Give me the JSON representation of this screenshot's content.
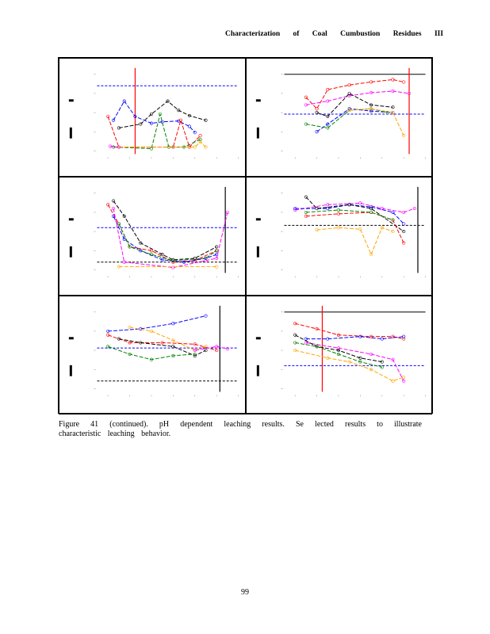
{
  "header": {
    "running_title": "Characterization of Coal Cumbustion Residues III"
  },
  "figure": {
    "caption": "Figure 41 (continued). pH dependent leaching results. Se lected results to illustrate characteristic leaching behavior.",
    "colors": {
      "blue": "#0000ff",
      "red": "#ff0000",
      "black": "#000000",
      "green": "#008000",
      "orange": "#ffa500",
      "magenta": "#ff00ff"
    }
  },
  "chart_data": [
    {
      "type": "line",
      "xlim": [
        1,
        14
      ],
      "ylim": [
        0,
        10
      ],
      "hlines": [
        {
          "y": 8.5,
          "color": "blue"
        }
      ],
      "vlines": [
        {
          "x": 4.5,
          "color": "red"
        }
      ],
      "series": [
        {
          "color": "black",
          "points": [
            [
              3,
              3
            ],
            [
              5,
              3.5
            ],
            [
              6,
              4.8
            ],
            [
              7.5,
              6.5
            ],
            [
              8.5,
              5.3
            ],
            [
              9.5,
              4.6
            ],
            [
              11,
              4
            ]
          ]
        },
        {
          "color": "blue",
          "points": [
            [
              2.5,
              4
            ],
            [
              3.5,
              6.5
            ],
            [
              4.5,
              4.5
            ],
            [
              6,
              3.6
            ],
            [
              7,
              3.8
            ],
            [
              8.5,
              3.9
            ],
            [
              9.5,
              3.2
            ],
            [
              10,
              2.4
            ]
          ]
        },
        {
          "color": "red",
          "points": [
            [
              2,
              4.5
            ],
            [
              3,
              0.5
            ],
            [
              8,
              0.5
            ],
            [
              8.7,
              4
            ],
            [
              9.5,
              0.5
            ],
            [
              10.5,
              2
            ]
          ]
        },
        {
          "color": "green",
          "points": [
            [
              2.5,
              0.5
            ],
            [
              6,
              0.3
            ],
            [
              6.8,
              4.8
            ],
            [
              7.6,
              0.5
            ],
            [
              9,
              0.5
            ],
            [
              10.5,
              1.5
            ]
          ]
        },
        {
          "color": "orange",
          "points": [
            [
              3,
              0.5
            ],
            [
              10,
              0.5
            ],
            [
              10.5,
              1.2
            ],
            [
              11,
              0.5
            ]
          ]
        },
        {
          "color": "magenta",
          "points": [
            [
              2.2,
              0.6
            ],
            [
              3,
              0.5
            ]
          ]
        }
      ]
    },
    {
      "type": "line",
      "xlim": [
        1,
        14
      ],
      "ylim": [
        0,
        10
      ],
      "hlines": [
        {
          "y": 10,
          "color": "black"
        },
        {
          "y": 4.8,
          "color": "blue"
        }
      ],
      "vlines": [
        {
          "x": 12.5,
          "color": "red"
        }
      ],
      "series": [
        {
          "color": "red",
          "points": [
            [
              3,
              7
            ],
            [
              4,
              5.5
            ],
            [
              5,
              8
            ],
            [
              7,
              8.6
            ],
            [
              9,
              9
            ],
            [
              11,
              9.3
            ],
            [
              12,
              9
            ]
          ]
        },
        {
          "color": "magenta",
          "points": [
            [
              3,
              6
            ],
            [
              5,
              6.5
            ],
            [
              7,
              7.2
            ],
            [
              9,
              7.6
            ],
            [
              11,
              7.8
            ],
            [
              12.5,
              7.5
            ]
          ]
        },
        {
          "color": "black",
          "points": [
            [
              4,
              5
            ],
            [
              5,
              4.5
            ],
            [
              7,
              7.5
            ],
            [
              9,
              6
            ],
            [
              11,
              5.7
            ]
          ]
        },
        {
          "color": "blue",
          "points": [
            [
              4,
              2.5
            ],
            [
              5,
              3.5
            ],
            [
              7,
              5.5
            ],
            [
              9,
              5.2
            ],
            [
              11,
              5
            ]
          ]
        },
        {
          "color": "green",
          "points": [
            [
              3,
              3.5
            ],
            [
              5,
              3
            ],
            [
              7,
              5.3
            ],
            [
              9,
              5.5
            ],
            [
              10.5,
              5
            ]
          ]
        },
        {
          "color": "orange",
          "points": [
            [
              7,
              5.3
            ],
            [
              9,
              5.5
            ],
            [
              11,
              5
            ],
            [
              12,
              2
            ]
          ]
        }
      ]
    },
    {
      "type": "line",
      "xlim": [
        1,
        14
      ],
      "ylim": [
        0,
        10
      ],
      "hlines": [
        {
          "y": 5.5,
          "color": "blue"
        },
        {
          "y": 1,
          "color": "black"
        }
      ],
      "vlines": [
        {
          "x": 12.8,
          "color": "black"
        }
      ],
      "series": [
        {
          "color": "black",
          "points": [
            [
              2.5,
              9
            ],
            [
              3.5,
              7
            ],
            [
              5,
              3.5
            ],
            [
              7,
              2
            ],
            [
              8,
              1.3
            ],
            [
              10,
              1.5
            ],
            [
              12,
              3
            ]
          ]
        },
        {
          "color": "red",
          "points": [
            [
              2,
              8.5
            ],
            [
              3,
              6
            ],
            [
              4,
              3
            ],
            [
              6,
              2.5
            ],
            [
              8,
              1
            ],
            [
              10,
              1.2
            ],
            [
              12,
              2.5
            ]
          ]
        },
        {
          "color": "blue",
          "points": [
            [
              2.5,
              7
            ],
            [
              3.5,
              4
            ],
            [
              5,
              2.5
            ],
            [
              7,
              1.3
            ],
            [
              9,
              1
            ],
            [
              11,
              1.5
            ],
            [
              12,
              2
            ]
          ]
        },
        {
          "color": "green",
          "points": [
            [
              3,
              6
            ],
            [
              4,
              3
            ],
            [
              6,
              2
            ],
            [
              8,
              1.2
            ],
            [
              11,
              1.5
            ],
            [
              12,
              2.5
            ]
          ]
        },
        {
          "color": "magenta",
          "points": [
            [
              2.5,
              8
            ],
            [
              3.5,
              1
            ],
            [
              8,
              0.3
            ],
            [
              11,
              1.2
            ],
            [
              12,
              1.5
            ],
            [
              13,
              7.5
            ]
          ]
        },
        {
          "color": "orange",
          "points": [
            [
              3,
              0.4
            ],
            [
              12,
              0.4
            ]
          ]
        }
      ]
    },
    {
      "type": "line",
      "xlim": [
        1,
        14
      ],
      "ylim": [
        0,
        10
      ],
      "hlines": [
        {
          "y": 5.8,
          "color": "black"
        }
      ],
      "vlines": [
        {
          "x": 13.3,
          "color": "black"
        }
      ],
      "series": [
        {
          "color": "magenta",
          "points": [
            [
              2,
              7.8
            ],
            [
              5,
              8.5
            ],
            [
              8,
              8.7
            ],
            [
              10,
              8
            ],
            [
              12,
              7.5
            ],
            [
              13,
              8
            ]
          ]
        },
        {
          "color": "blue",
          "points": [
            [
              2,
              8
            ],
            [
              5,
              8
            ],
            [
              7,
              8.5
            ],
            [
              9,
              8.2
            ],
            [
              11,
              7.5
            ],
            [
              12,
              6
            ]
          ]
        },
        {
          "color": "black",
          "points": [
            [
              3,
              9.5
            ],
            [
              4,
              8
            ],
            [
              7,
              8.5
            ],
            [
              9,
              8
            ],
            [
              12,
              5
            ]
          ]
        },
        {
          "color": "red",
          "points": [
            [
              3,
              7
            ],
            [
              6,
              7.3
            ],
            [
              9,
              7.5
            ],
            [
              11,
              6.5
            ],
            [
              12,
              3.5
            ]
          ]
        },
        {
          "color": "green",
          "points": [
            [
              3,
              7.5
            ],
            [
              6,
              7.8
            ],
            [
              9,
              7.5
            ],
            [
              11,
              6.5
            ]
          ]
        },
        {
          "color": "orange",
          "points": [
            [
              4,
              5.2
            ],
            [
              6,
              5.5
            ],
            [
              8,
              5.3
            ],
            [
              9,
              2
            ],
            [
              10,
              5.5
            ],
            [
              11,
              5
            ]
          ]
        }
      ]
    },
    {
      "type": "line",
      "xlim": [
        1,
        14
      ],
      "ylim": [
        0,
        10
      ],
      "hlines": [
        {
          "y": 5.3,
          "color": "blue"
        },
        {
          "y": 1,
          "color": "black"
        }
      ],
      "vlines": [
        {
          "x": 12.3,
          "color": "black"
        }
      ],
      "series": [
        {
          "color": "blue",
          "points": [
            [
              2,
              7.5
            ],
            [
              5,
              7.8
            ],
            [
              8,
              8.5
            ],
            [
              11,
              9.5
            ]
          ]
        },
        {
          "color": "orange",
          "points": [
            [
              4,
              8
            ],
            [
              6,
              7.5
            ],
            [
              8,
              6.3
            ],
            [
              10,
              5
            ],
            [
              11,
              5.5
            ]
          ]
        },
        {
          "color": "red",
          "points": [
            [
              2,
              7
            ],
            [
              4,
              6
            ],
            [
              7,
              6
            ],
            [
              10,
              5.8
            ],
            [
              12,
              5
            ]
          ]
        },
        {
          "color": "black",
          "points": [
            [
              3,
              6.5
            ],
            [
              5,
              6
            ],
            [
              8,
              5.5
            ],
            [
              10,
              4.3
            ],
            [
              11,
              5
            ]
          ]
        },
        {
          "color": "green",
          "points": [
            [
              2,
              5.5
            ],
            [
              4,
              4.5
            ],
            [
              6,
              3.8
            ],
            [
              8,
              4.3
            ],
            [
              10,
              4.5
            ]
          ]
        },
        {
          "color": "magenta",
          "points": [
            [
              10,
              5
            ],
            [
              12,
              5.5
            ],
            [
              13,
              5.2
            ]
          ]
        }
      ]
    },
    {
      "type": "line",
      "xlim": [
        1,
        14
      ],
      "ylim": [
        0,
        10
      ],
      "hlines": [
        {
          "y": 10,
          "color": "black"
        },
        {
          "y": 3,
          "color": "blue"
        }
      ],
      "vlines": [
        {
          "x": 4.5,
          "color": "red"
        }
      ],
      "series": [
        {
          "color": "red",
          "points": [
            [
              2,
              8.5
            ],
            [
              4,
              7.8
            ],
            [
              6,
              7
            ],
            [
              9,
              6.8
            ],
            [
              11,
              6.8
            ],
            [
              12,
              6.5
            ]
          ]
        },
        {
          "color": "blue",
          "points": [
            [
              3,
              6.5
            ],
            [
              5,
              6.5
            ],
            [
              8,
              6.8
            ],
            [
              10,
              6.5
            ],
            [
              12,
              6.8
            ]
          ]
        },
        {
          "color": "magenta",
          "points": [
            [
              3,
              6
            ],
            [
              6,
              5.3
            ],
            [
              9,
              4.5
            ],
            [
              11,
              3.8
            ],
            [
              12,
              1
            ]
          ]
        },
        {
          "color": "black",
          "points": [
            [
              2,
              7
            ],
            [
              4,
              5.5
            ],
            [
              6,
              5
            ],
            [
              8,
              4
            ],
            [
              10,
              3.5
            ]
          ]
        },
        {
          "color": "green",
          "points": [
            [
              2,
              6
            ],
            [
              4,
              5.5
            ],
            [
              6,
              4.5
            ],
            [
              8,
              3.5
            ],
            [
              10,
              2.8
            ]
          ]
        },
        {
          "color": "orange",
          "points": [
            [
              2,
              5
            ],
            [
              5,
              4
            ],
            [
              7,
              3.5
            ],
            [
              9,
              2.5
            ],
            [
              11,
              1
            ],
            [
              12,
              1.5
            ]
          ]
        }
      ]
    }
  ],
  "page": {
    "number": "99"
  }
}
